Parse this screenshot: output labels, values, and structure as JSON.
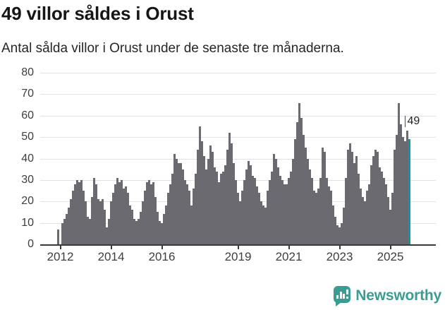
{
  "header": {
    "title": "49 villor såldes i Orust",
    "subtitle": "Antal sålda villor i Orust under de senaste tre månaderna."
  },
  "chart_data": {
    "type": "bar",
    "title": "49 villor såldes i Orust",
    "subtitle": "Antal sålda villor i Orust under de senaste tre månaderna.",
    "xlabel": "",
    "ylabel": "",
    "ylim": [
      0,
      80
    ],
    "yticks": [
      0,
      10,
      20,
      30,
      40,
      50,
      60,
      70,
      80
    ],
    "grid": true,
    "legend": "none",
    "frequency": "monthly",
    "start_month": "2011-12",
    "values": [
      7,
      0,
      10,
      12,
      14,
      17,
      21,
      25,
      28,
      30,
      29,
      30,
      25,
      20,
      13,
      12,
      22,
      31,
      28,
      21,
      20,
      21,
      16,
      8,
      12,
      20,
      24,
      28,
      31,
      29,
      30,
      26,
      27,
      24,
      18,
      16,
      12,
      11,
      12,
      15,
      20,
      25,
      29,
      30,
      28,
      29,
      22,
      15,
      11,
      10,
      14,
      18,
      24,
      28,
      33,
      42,
      40,
      38,
      38,
      35,
      30,
      28,
      25,
      18,
      26,
      33,
      44,
      55,
      48,
      41,
      35,
      40,
      46,
      43,
      36,
      34,
      29,
      33,
      34,
      37,
      44,
      52,
      47,
      38,
      30,
      24,
      20,
      25,
      30,
      35,
      39,
      37,
      32,
      31,
      27,
      24,
      20,
      18,
      17,
      25,
      30,
      34,
      42,
      40,
      36,
      32,
      30,
      28,
      28,
      31,
      34,
      40,
      49,
      57,
      66,
      59,
      51,
      45,
      40,
      35,
      31,
      25,
      24,
      26,
      31,
      45,
      43,
      31,
      27,
      25,
      18,
      13,
      9,
      8,
      10,
      17,
      31,
      44,
      47,
      43,
      38,
      41,
      33,
      26,
      22,
      20,
      25,
      28,
      37,
      41,
      44,
      43,
      36,
      34,
      31,
      28,
      22,
      16,
      24,
      44,
      51,
      66,
      56,
      50,
      48,
      53,
      49
    ],
    "xticks": [
      {
        "label": "2012",
        "month_index": 1
      },
      {
        "label": "2014",
        "month_index": 25
      },
      {
        "label": "2016",
        "month_index": 49
      },
      {
        "label": "2019",
        "month_index": 85
      },
      {
        "label": "2021",
        "month_index": 109
      },
      {
        "label": "2023",
        "month_index": 133
      },
      {
        "label": "2025",
        "month_index": 157
      }
    ],
    "highlight": {
      "index": 166,
      "value": 49,
      "label": "49"
    },
    "colors": {
      "bar": "#6b6a71",
      "highlight": "#00a1a1",
      "grid": "#e2e2e2",
      "axis": "#3a3a3a",
      "tick_text": "#3d3d3d",
      "annotation_text": "#222222"
    }
  },
  "footer": {
    "brand": "Newsworthy",
    "logo_icon": "newsworthy-speech-bubble-bar-chart",
    "brand_color": "#3b9c93"
  }
}
